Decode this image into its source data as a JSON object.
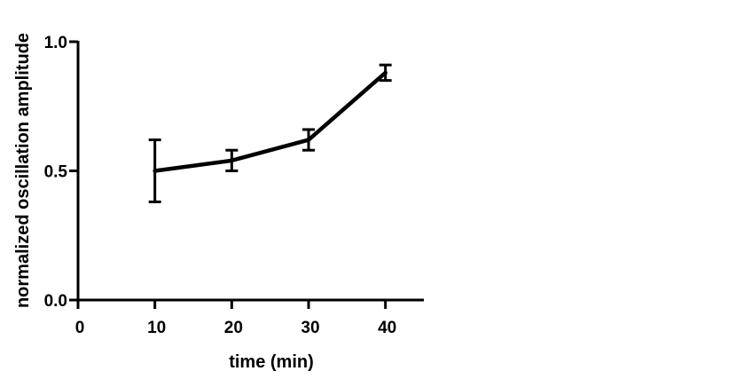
{
  "chart_data": {
    "type": "line",
    "title": "",
    "xlabel": "time (min)",
    "ylabel": "normalized oscillation amplitude",
    "xlim": [
      0,
      45
    ],
    "ylim": [
      0,
      1.0
    ],
    "x_ticks": [
      0,
      10,
      20,
      30,
      40
    ],
    "x_tick_labels": [
      "0",
      "10",
      "20",
      "30",
      "40"
    ],
    "y_ticks": [
      0,
      0.5,
      1.0
    ],
    "y_tick_labels": [
      "0.0",
      "0.5",
      "1.0"
    ],
    "grid": false,
    "legend": "none",
    "series": [
      {
        "x": [
          10,
          20,
          30,
          40
        ],
        "y": [
          0.5,
          0.54,
          0.62,
          0.88
        ],
        "error": [
          0.12,
          0.04,
          0.04,
          0.03
        ]
      }
    ],
    "colors": {
      "line": "#000000",
      "axis": "#000000",
      "background": "#ffffff"
    }
  }
}
